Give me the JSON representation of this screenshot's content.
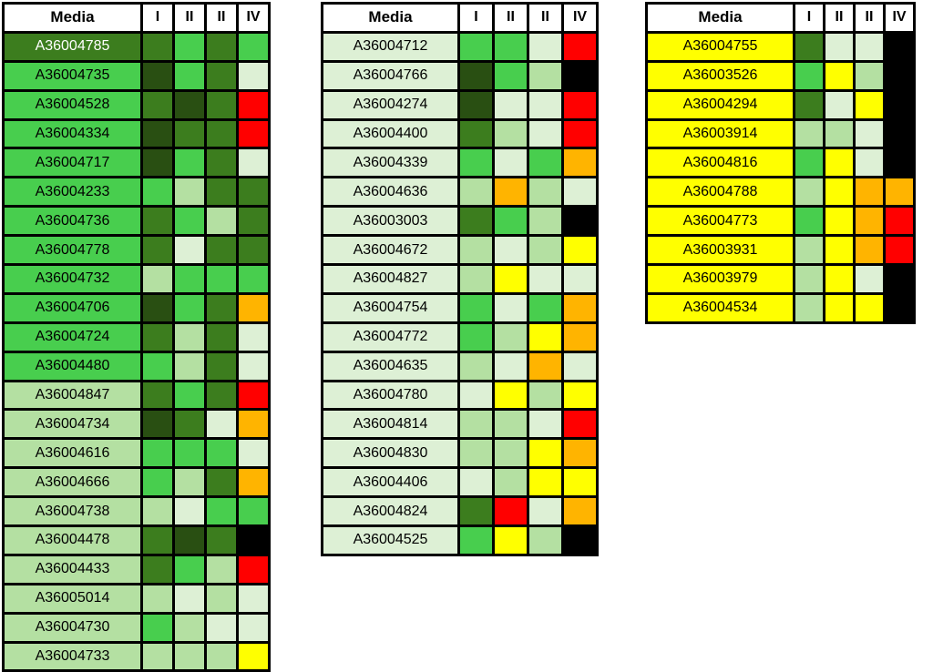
{
  "palette": {
    "VDG": "#294f12",
    "DG": "#3c7d1e",
    "MG": "#48ce4e",
    "LG": "#b4e0a2",
    "VLG": "#ddf0d5",
    "Y": "#ffff00",
    "O": "#ffb400",
    "R": "#ff0000",
    "K": "#000000",
    "W": "#ffffff"
  },
  "chart_data": {
    "type": "heatmap",
    "title": "",
    "legend_position": "none",
    "color_levels": {
      "VDG": "very dark green",
      "DG": "dark green",
      "MG": "medium green",
      "LG": "light green",
      "VLG": "very light green",
      "Y": "yellow",
      "O": "orange",
      "R": "red",
      "K": "black"
    },
    "tables": [
      {
        "headers": [
          "Media",
          "I",
          "II",
          "II",
          "IV"
        ],
        "rows": [
          {
            "id": "A36004785",
            "label_color": "DG",
            "label_text_color": "#ffffff",
            "cells": [
              "DG",
              "MG",
              "DG",
              "MG"
            ]
          },
          {
            "id": "A36004735",
            "label_color": "MG",
            "label_text_color": "#000000",
            "cells": [
              "VDG",
              "MG",
              "DG",
              "VLG"
            ]
          },
          {
            "id": "A36004528",
            "label_color": "MG",
            "label_text_color": "#000000",
            "cells": [
              "DG",
              "VDG",
              "DG",
              "R"
            ]
          },
          {
            "id": "A36004334",
            "label_color": "MG",
            "label_text_color": "#000000",
            "cells": [
              "VDG",
              "DG",
              "DG",
              "R"
            ]
          },
          {
            "id": "A36004717",
            "label_color": "MG",
            "label_text_color": "#000000",
            "cells": [
              "VDG",
              "MG",
              "DG",
              "VLG"
            ]
          },
          {
            "id": "A36004233",
            "label_color": "MG",
            "label_text_color": "#000000",
            "cells": [
              "MG",
              "LG",
              "DG",
              "DG"
            ]
          },
          {
            "id": "A36004736",
            "label_color": "MG",
            "label_text_color": "#000000",
            "cells": [
              "DG",
              "MG",
              "LG",
              "DG"
            ]
          },
          {
            "id": "A36004778",
            "label_color": "MG",
            "label_text_color": "#000000",
            "cells": [
              "DG",
              "VLG",
              "DG",
              "DG"
            ]
          },
          {
            "id": "A36004732",
            "label_color": "MG",
            "label_text_color": "#000000",
            "cells": [
              "LG",
              "MG",
              "MG",
              "MG"
            ]
          },
          {
            "id": "A36004706",
            "label_color": "MG",
            "label_text_color": "#000000",
            "cells": [
              "VDG",
              "MG",
              "DG",
              "O"
            ]
          },
          {
            "id": "A36004724",
            "label_color": "MG",
            "label_text_color": "#000000",
            "cells": [
              "DG",
              "LG",
              "DG",
              "VLG"
            ]
          },
          {
            "id": "A36004480",
            "label_color": "MG",
            "label_text_color": "#000000",
            "cells": [
              "MG",
              "LG",
              "DG",
              "VLG"
            ]
          },
          {
            "id": "A36004847",
            "label_color": "LG",
            "label_text_color": "#000000",
            "cells": [
              "DG",
              "MG",
              "DG",
              "R"
            ]
          },
          {
            "id": "A36004734",
            "label_color": "LG",
            "label_text_color": "#000000",
            "cells": [
              "VDG",
              "DG",
              "VLG",
              "O"
            ]
          },
          {
            "id": "A36004616",
            "label_color": "LG",
            "label_text_color": "#000000",
            "cells": [
              "MG",
              "MG",
              "MG",
              "VLG"
            ]
          },
          {
            "id": "A36004666",
            "label_color": "LG",
            "label_text_color": "#000000",
            "cells": [
              "MG",
              "LG",
              "DG",
              "O"
            ]
          },
          {
            "id": "A36004738",
            "label_color": "LG",
            "label_text_color": "#000000",
            "cells": [
              "LG",
              "VLG",
              "MG",
              "MG"
            ]
          },
          {
            "id": "A36004478",
            "label_color": "LG",
            "label_text_color": "#000000",
            "cells": [
              "DG",
              "VDG",
              "DG",
              "K"
            ]
          },
          {
            "id": "A36004433",
            "label_color": "LG",
            "label_text_color": "#000000",
            "cells": [
              "DG",
              "MG",
              "LG",
              "R"
            ]
          },
          {
            "id": "A36005014",
            "label_color": "LG",
            "label_text_color": "#000000",
            "cells": [
              "LG",
              "VLG",
              "LG",
              "VLG"
            ]
          },
          {
            "id": "A36004730",
            "label_color": "LG",
            "label_text_color": "#000000",
            "cells": [
              "MG",
              "LG",
              "VLG",
              "VLG"
            ]
          },
          {
            "id": "A36004733",
            "label_color": "LG",
            "label_text_color": "#000000",
            "cells": [
              "LG",
              "LG",
              "LG",
              "Y"
            ]
          }
        ]
      },
      {
        "headers": [
          "Media",
          "I",
          "II",
          "II",
          "IV"
        ],
        "rows": [
          {
            "id": "A36004712",
            "label_color": "VLG",
            "label_text_color": "#000000",
            "cells": [
              "MG",
              "MG",
              "VLG",
              "R"
            ]
          },
          {
            "id": "A36004766",
            "label_color": "VLG",
            "label_text_color": "#000000",
            "cells": [
              "VDG",
              "MG",
              "LG",
              "K"
            ]
          },
          {
            "id": "A36004274",
            "label_color": "VLG",
            "label_text_color": "#000000",
            "cells": [
              "VDG",
              "VLG",
              "VLG",
              "R"
            ]
          },
          {
            "id": "A36004400",
            "label_color": "VLG",
            "label_text_color": "#000000",
            "cells": [
              "DG",
              "LG",
              "VLG",
              "R"
            ]
          },
          {
            "id": "A36004339",
            "label_color": "VLG",
            "label_text_color": "#000000",
            "cells": [
              "MG",
              "VLG",
              "MG",
              "O"
            ]
          },
          {
            "id": "A36004636",
            "label_color": "VLG",
            "label_text_color": "#000000",
            "cells": [
              "LG",
              "O",
              "LG",
              "VLG"
            ]
          },
          {
            "id": "A36003003",
            "label_color": "VLG",
            "label_text_color": "#000000",
            "cells": [
              "DG",
              "MG",
              "LG",
              "K"
            ]
          },
          {
            "id": "A36004672",
            "label_color": "VLG",
            "label_text_color": "#000000",
            "cells": [
              "LG",
              "VLG",
              "LG",
              "Y"
            ]
          },
          {
            "id": "A36004827",
            "label_color": "VLG",
            "label_text_color": "#000000",
            "cells": [
              "LG",
              "Y",
              "VLG",
              "VLG"
            ]
          },
          {
            "id": "A36004754",
            "label_color": "VLG",
            "label_text_color": "#000000",
            "cells": [
              "MG",
              "VLG",
              "MG",
              "O"
            ]
          },
          {
            "id": "A36004772",
            "label_color": "VLG",
            "label_text_color": "#000000",
            "cells": [
              "MG",
              "LG",
              "Y",
              "O"
            ]
          },
          {
            "id": "A36004635",
            "label_color": "VLG",
            "label_text_color": "#000000",
            "cells": [
              "LG",
              "VLG",
              "O",
              "VLG"
            ]
          },
          {
            "id": "A36004780",
            "label_color": "VLG",
            "label_text_color": "#000000",
            "cells": [
              "VLG",
              "Y",
              "LG",
              "Y"
            ]
          },
          {
            "id": "A36004814",
            "label_color": "VLG",
            "label_text_color": "#000000",
            "cells": [
              "LG",
              "LG",
              "VLG",
              "R"
            ]
          },
          {
            "id": "A36004830",
            "label_color": "VLG",
            "label_text_color": "#000000",
            "cells": [
              "LG",
              "LG",
              "Y",
              "O"
            ]
          },
          {
            "id": "A36004406",
            "label_color": "VLG",
            "label_text_color": "#000000",
            "cells": [
              "VLG",
              "LG",
              "Y",
              "Y"
            ]
          },
          {
            "id": "A36004824",
            "label_color": "VLG",
            "label_text_color": "#000000",
            "cells": [
              "DG",
              "R",
              "VLG",
              "O"
            ]
          },
          {
            "id": "A36004525",
            "label_color": "VLG",
            "label_text_color": "#000000",
            "cells": [
              "MG",
              "Y",
              "LG",
              "K"
            ]
          }
        ]
      },
      {
        "headers": [
          "Media",
          "I",
          "II",
          "II",
          "IV"
        ],
        "rows": [
          {
            "id": "A36004755",
            "label_color": "Y",
            "label_text_color": "#000000",
            "cells": [
              "DG",
              "VLG",
              "VLG",
              "K"
            ]
          },
          {
            "id": "A36003526",
            "label_color": "Y",
            "label_text_color": "#000000",
            "cells": [
              "MG",
              "Y",
              "LG",
              "K"
            ]
          },
          {
            "id": "A36004294",
            "label_color": "Y",
            "label_text_color": "#000000",
            "cells": [
              "DG",
              "VLG",
              "Y",
              "K"
            ]
          },
          {
            "id": "A36003914",
            "label_color": "Y",
            "label_text_color": "#000000",
            "cells": [
              "LG",
              "LG",
              "VLG",
              "K"
            ]
          },
          {
            "id": "A36004816",
            "label_color": "Y",
            "label_text_color": "#000000",
            "cells": [
              "MG",
              "Y",
              "VLG",
              "K"
            ]
          },
          {
            "id": "A36004788",
            "label_color": "Y",
            "label_text_color": "#000000",
            "cells": [
              "LG",
              "Y",
              "O",
              "O"
            ]
          },
          {
            "id": "A36004773",
            "label_color": "Y",
            "label_text_color": "#000000",
            "cells": [
              "MG",
              "Y",
              "O",
              "R"
            ]
          },
          {
            "id": "A36003931",
            "label_color": "Y",
            "label_text_color": "#000000",
            "cells": [
              "LG",
              "Y",
              "O",
              "R"
            ]
          },
          {
            "id": "A36003979",
            "label_color": "Y",
            "label_text_color": "#000000",
            "cells": [
              "LG",
              "Y",
              "VLG",
              "K"
            ]
          },
          {
            "id": "A36004534",
            "label_color": "Y",
            "label_text_color": "#000000",
            "cells": [
              "LG",
              "Y",
              "Y",
              "K"
            ]
          }
        ]
      }
    ]
  },
  "layout_hints": {
    "label_col_widths": [
      152,
      150,
      162
    ],
    "value_col_widths": [
      35,
      38,
      33
    ]
  }
}
